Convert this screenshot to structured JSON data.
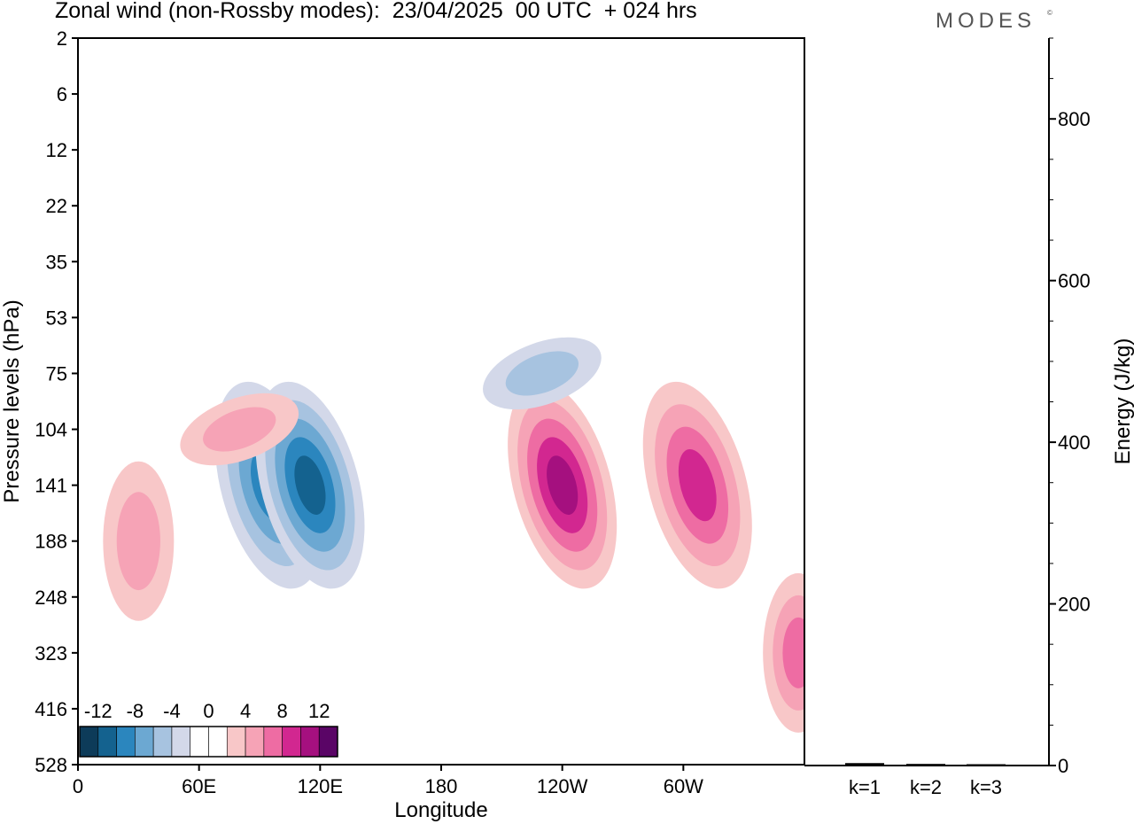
{
  "header": {
    "title": "Zonal wind (non-Rossby modes):  23/04/2025  00 UTC  + 024 hrs",
    "logo": "MODES",
    "logo_mark": "©"
  },
  "chart_data": [
    {
      "type": "heatmap",
      "title": "Zonal wind (non-Rossby modes):  23/04/2025  00 UTC  + 024 hrs",
      "xlabel": "Longitude",
      "ylabel": "Pressure levels (hPa)",
      "x_ticks": [
        "0",
        "60E",
        "120E",
        "180",
        "120W",
        "60W"
      ],
      "x_tick_values": [
        0,
        60,
        120,
        180,
        240,
        300
      ],
      "xlim": [
        0,
        360
      ],
      "y_ticks": [
        "2",
        "6",
        "12",
        "22",
        "35",
        "53",
        "75",
        "104",
        "141",
        "188",
        "248",
        "323",
        "416",
        "528"
      ],
      "colorbar": {
        "labels": [
          "-12",
          "-8",
          "-4",
          "0",
          "4",
          "8",
          "12"
        ],
        "label_values": [
          -12,
          -8,
          -4,
          0,
          4,
          8,
          12
        ],
        "colors": [
          "#0d3b59",
          "#14628f",
          "#2b86be",
          "#6ca8d2",
          "#a7c3e0",
          "#d3d8e9",
          "#ffffff",
          "#ffffff",
          "#f8c7c8",
          "#f6a3b6",
          "#ee6ca3",
          "#d22790",
          "#a5107f",
          "#5a0566"
        ]
      },
      "features": [
        {
          "kind": "negative",
          "level": -8,
          "lon": 95,
          "pressure": "141",
          "note": "main easterly anomaly 60E-130E"
        },
        {
          "kind": "negative",
          "level": -10,
          "lon": 115,
          "pressure": "141"
        },
        {
          "kind": "positive",
          "level": 10,
          "lon": 240,
          "pressure": "141",
          "note": "westerly anomaly near 120W"
        },
        {
          "kind": "positive",
          "level": 8,
          "lon": 307,
          "pressure": "141",
          "note": "near 60W"
        },
        {
          "kind": "positive",
          "level": 6,
          "lon": 357,
          "pressure": "323"
        },
        {
          "kind": "negative",
          "level": -4,
          "lon": 230,
          "pressure": "75"
        },
        {
          "kind": "positive",
          "level": 4,
          "lon": 30,
          "pressure": "188"
        },
        {
          "kind": "positive",
          "level": 4,
          "lon": 80,
          "pressure": "104"
        }
      ]
    },
    {
      "type": "bar",
      "xlabel": "",
      "ylabel": "Energy (J/kg)",
      "categories": [
        "k=1",
        "k=2",
        "k=3"
      ],
      "values": [
        3,
        2,
        1
      ],
      "ylim": [
        0,
        900
      ],
      "y_ticks": [
        0,
        200,
        400,
        600,
        800
      ]
    }
  ]
}
